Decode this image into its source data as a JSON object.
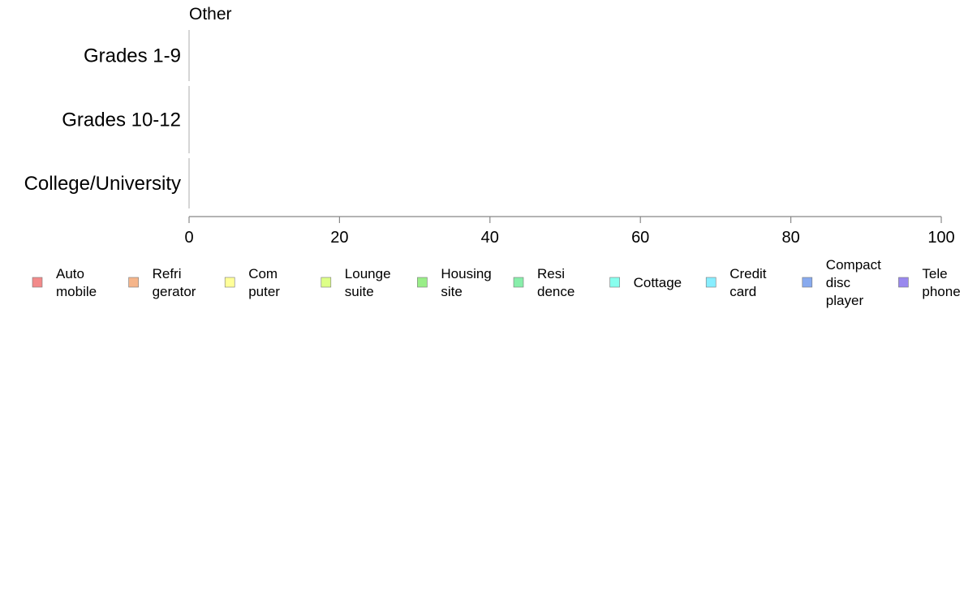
{
  "chart_data": {
    "type": "bar",
    "panel_title": "Other",
    "categories": [
      "Grades 1-9",
      "Grades 10-12",
      "College/University"
    ],
    "xlim": [
      0,
      100
    ],
    "xticks": [
      0,
      20,
      40,
      60,
      80,
      100
    ],
    "grid": false,
    "legend_position": "bottom",
    "series": [
      {
        "name": "Auto\nmobile",
        "color": "#f28a8a",
        "values": [
          0,
          0,
          0
        ]
      },
      {
        "name": "Refri\ngerator",
        "color": "#f5b58a",
        "values": [
          0,
          0,
          0
        ]
      },
      {
        "name": "Com\nputer",
        "color": "#ffff99",
        "values": [
          0,
          0,
          0
        ]
      },
      {
        "name": "Lounge\nsuite",
        "color": "#ddff88",
        "values": [
          0,
          0,
          0
        ]
      },
      {
        "name": "Housing\nsite",
        "color": "#99ee88",
        "values": [
          0,
          0,
          0
        ]
      },
      {
        "name": "Resi\ndence",
        "color": "#88eeaa",
        "values": [
          0,
          0,
          0
        ]
      },
      {
        "name": "Cottage",
        "color": "#88ffee",
        "values": [
          0,
          0,
          0
        ]
      },
      {
        "name": "Credit\ncard",
        "color": "#88eeff",
        "values": [
          0,
          0,
          0
        ]
      },
      {
        "name": "Compact\ndisc\nplayer",
        "color": "#88aaee",
        "values": [
          0,
          0,
          0
        ]
      },
      {
        "name": "Tele\nphone",
        "color": "#9988ee",
        "values": [
          0,
          0,
          0
        ]
      }
    ]
  }
}
